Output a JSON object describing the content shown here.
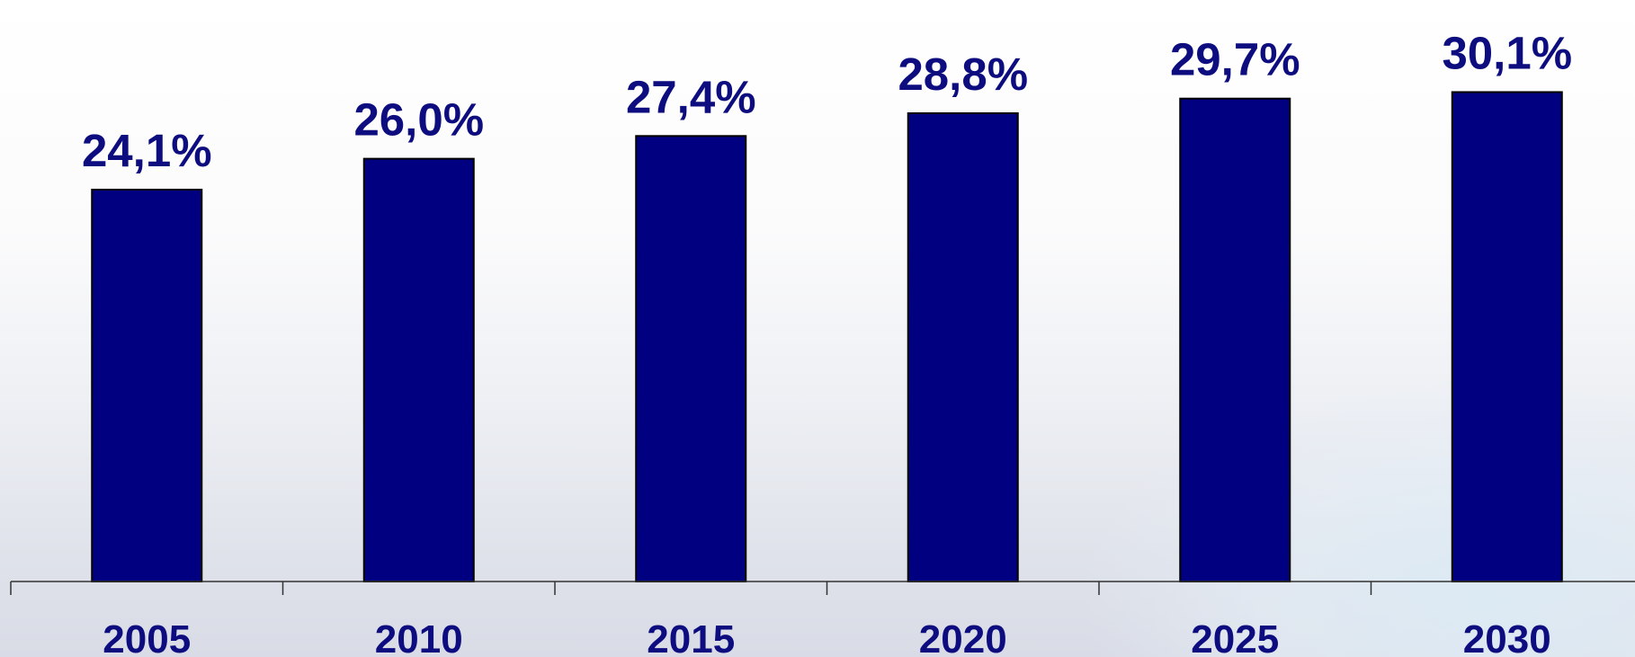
{
  "chart_data": {
    "type": "bar",
    "categories": [
      "2005",
      "2010",
      "2015",
      "2020",
      "2025",
      "2030"
    ],
    "values": [
      24.1,
      26.0,
      27.4,
      28.8,
      29.7,
      30.1
    ],
    "data_labels": [
      "24,1%",
      "26,0%",
      "27,4%",
      "28,8%",
      "29,7%",
      "30,1%"
    ],
    "title": "",
    "xlabel": "",
    "ylabel": "",
    "ylim": [
      0,
      33
    ],
    "grid": false,
    "legend": "none",
    "colors": {
      "bar": "#000080",
      "bar_outline": "#000000",
      "label": "#0d0d80",
      "axis": "#333333"
    }
  }
}
